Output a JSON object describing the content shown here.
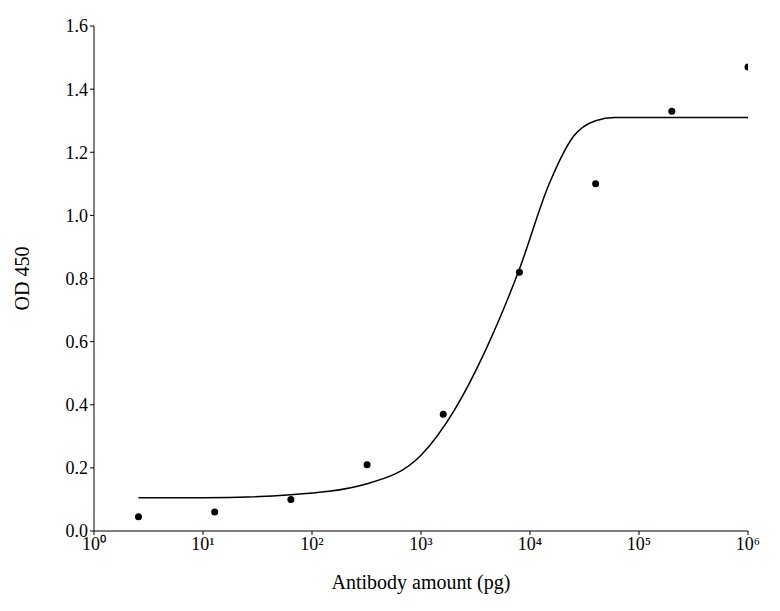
{
  "chart_data": {
    "type": "scatter",
    "x_label": "Antibody amount (pg)",
    "y_label": "OD 450",
    "log": "x",
    "grid": false,
    "xlim": [
      1,
      1000000
    ],
    "xticks": [
      {
        "value": 1,
        "label": "10⁰"
      },
      {
        "value": 10,
        "label": "10¹"
      },
      {
        "value": 100,
        "label": "10²"
      },
      {
        "value": 1000,
        "label": "10³"
      },
      {
        "value": 10000,
        "label": "10⁴"
      },
      {
        "value": 100000,
        "label": "10⁵"
      },
      {
        "value": 1000000,
        "label": "10⁶"
      }
    ],
    "ylim": [
      0,
      1.6
    ],
    "yticks": [
      {
        "value": 0,
        "label": "0.0"
      },
      0.2,
      0.4,
      0.6,
      0.8,
      {
        "value": 1,
        "label": "1.0"
      },
      1.2,
      1.4,
      1.6
    ],
    "series": [
      {
        "type": "scatter",
        "marker": "circle",
        "color": "#000000",
        "x": [
          2.56,
          12.8,
          64,
          320,
          1600,
          8000,
          40000,
          200000,
          1000000
        ],
        "values": [
          0.045,
          0.06,
          0.1,
          0.21,
          0.37,
          0.82,
          1.1,
          1.33,
          1.47
        ]
      },
      {
        "type": "line",
        "line_style": "solid",
        "color": "#000000",
        "x": [
          2.56,
          10,
          64,
          320,
          1000,
          2000,
          4000,
          8000,
          15000,
          25000,
          40000,
          60000,
          1000000
        ],
        "values": [
          0.105,
          0.105,
          0.115,
          0.15,
          0.24,
          0.38,
          0.58,
          0.83,
          1.1,
          1.25,
          1.3,
          1.31,
          1.31
        ]
      }
    ]
  }
}
